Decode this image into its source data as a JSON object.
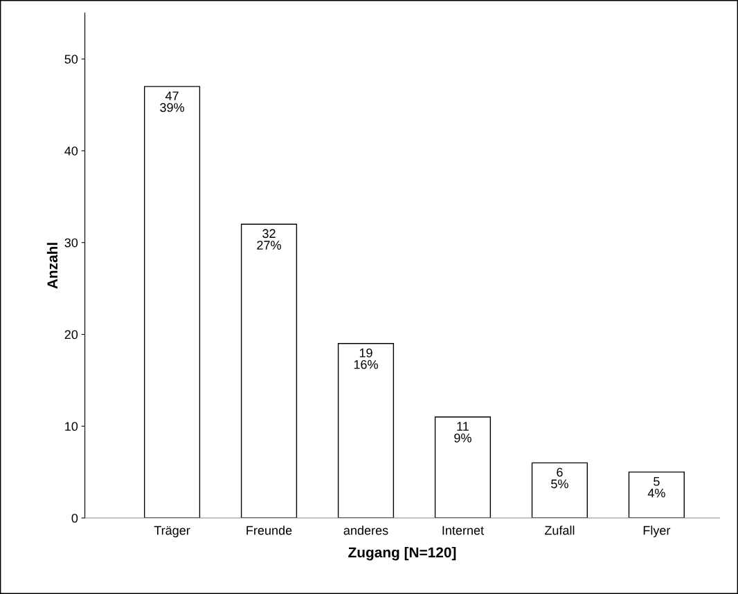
{
  "chart_data": {
    "type": "bar",
    "xlabel": "Zugang [N=120]",
    "ylabel": "Anzahl",
    "categories": [
      "Träger",
      "Freunde",
      "anderes",
      "Internet",
      "Zufall",
      "Flyer"
    ],
    "values": [
      47,
      32,
      19,
      11,
      6,
      5
    ],
    "value_labels": [
      "47\n39%",
      "32\n27%",
      "19\n16%",
      "11\n9%",
      "6\n5%",
      "5\n4%"
    ],
    "color": "#ffffff",
    "ylim": [
      0,
      55
    ],
    "yticks": [
      0,
      10,
      20,
      30,
      40,
      50
    ],
    "grid": false,
    "legend": false
  }
}
